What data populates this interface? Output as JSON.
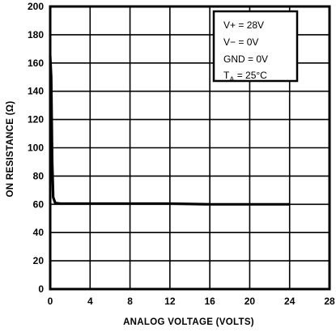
{
  "chart_data": {
    "type": "line",
    "title": "",
    "xlabel": "ANALOG VOLTAGE (VOLTS)",
    "ylabel": "ON RESISTANCE (Ω)",
    "xlim": [
      0,
      28
    ],
    "ylim": [
      0,
      200
    ],
    "x_ticks": [
      "0",
      "4",
      "8",
      "12",
      "16",
      "20",
      "24",
      "28"
    ],
    "y_ticks": [
      "0",
      "20",
      "40",
      "60",
      "80",
      "100",
      "120",
      "140",
      "160",
      "180",
      "200"
    ],
    "grid": true,
    "legend_position": "top-right",
    "conditions": {
      "vplus": "V+ = 28V",
      "vminus": "V− = 0V",
      "gnd": "GND = 0V",
      "ta_main": "T",
      "ta_sub": "A",
      "ta_rest": " = 25°C"
    },
    "series": [
      {
        "x": [
          0,
          0.1,
          0.15,
          0.2,
          0.3,
          0.5,
          1,
          2,
          4,
          8,
          12,
          16,
          20,
          24
        ],
        "y": [
          165,
          150,
          120,
          90,
          65,
          61,
          60.5,
          60.5,
          60.5,
          60.5,
          60.5,
          60,
          60,
          60
        ]
      }
    ],
    "color": "#000000"
  }
}
